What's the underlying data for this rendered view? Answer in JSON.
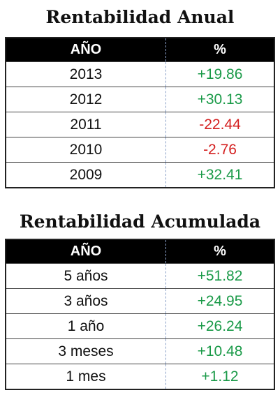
{
  "tables": [
    {
      "title": "Rentabilidad Anual",
      "header": [
        "AÑO",
        "%"
      ],
      "rows": [
        [
          "2013",
          "+19.86"
        ],
        [
          "2012",
          "+30.13"
        ],
        [
          "2011",
          "-22.44"
        ],
        [
          "2010",
          "-2.76"
        ],
        [
          "2009",
          "+32.41"
        ]
      ]
    },
    {
      "title": "Rentabilidad Acumulada",
      "header": [
        "AÑO",
        "%"
      ],
      "rows": [
        [
          "5 años",
          "+51.82"
        ],
        [
          "3 años",
          "+24.95"
        ],
        [
          "1 año",
          "+26.24"
        ],
        [
          "3 meses",
          "+10.48"
        ],
        [
          "1 mes",
          "+1.12"
        ]
      ]
    }
  ]
}
